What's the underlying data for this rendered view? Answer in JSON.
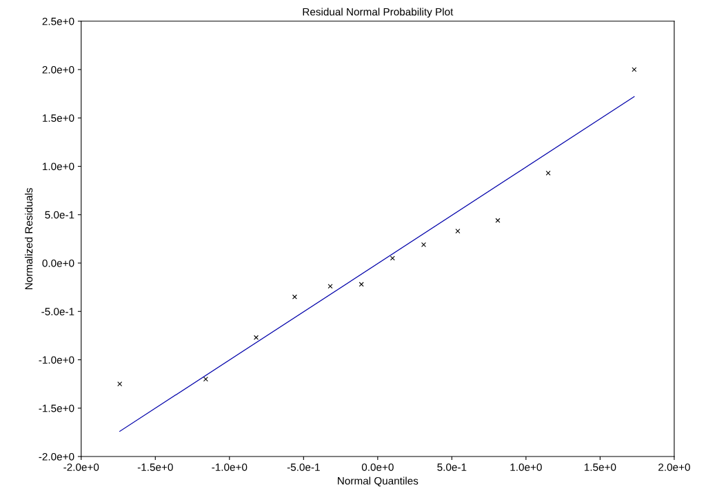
{
  "chart_data": {
    "type": "scatter",
    "title": "Residual Normal Probability Plot",
    "xlabel": "Normal Quantiles",
    "ylabel": "Normalized Residuals",
    "marker": "cross",
    "grid": false,
    "xlim": [
      -2.0,
      2.0
    ],
    "ylim": [
      -2.0,
      2.5
    ],
    "xticks": [
      {
        "value": -2.0,
        "label": "-2.0e+0"
      },
      {
        "value": -1.5,
        "label": "-1.5e+0"
      },
      {
        "value": -1.0,
        "label": "-1.0e+0"
      },
      {
        "value": -0.5,
        "label": "-5.0e-1"
      },
      {
        "value": 0.0,
        "label": "0.0e+0"
      },
      {
        "value": 0.5,
        "label": "5.0e-1"
      },
      {
        "value": 1.0,
        "label": "1.0e+0"
      },
      {
        "value": 1.5,
        "label": "1.5e+0"
      },
      {
        "value": 2.0,
        "label": "2.0e+0"
      }
    ],
    "yticks": [
      {
        "value": -2.0,
        "label": "-2.0e+0"
      },
      {
        "value": -1.5,
        "label": "-1.5e+0"
      },
      {
        "value": -1.0,
        "label": "-1.0e+0"
      },
      {
        "value": -0.5,
        "label": "-5.0e-1"
      },
      {
        "value": 0.0,
        "label": "0.0e+0"
      },
      {
        "value": 0.5,
        "label": "5.0e-1"
      },
      {
        "value": 1.0,
        "label": "1.0e+0"
      },
      {
        "value": 1.5,
        "label": "1.5e+0"
      },
      {
        "value": 2.0,
        "label": "2.0e+0"
      },
      {
        "value": 2.5,
        "label": "2.5e+0"
      }
    ],
    "series": [
      {
        "color": "#000000",
        "x": [
          -1.74,
          -1.16,
          -0.82,
          -0.56,
          -0.32,
          -0.11,
          0.1,
          0.31,
          0.54,
          0.81,
          1.15,
          1.73
        ],
        "values": [
          -1.25,
          -1.2,
          -0.77,
          -0.35,
          -0.24,
          -0.22,
          0.05,
          0.19,
          0.33,
          0.44,
          0.93,
          2.0
        ]
      },
      {
        "type": "line",
        "color": "#0000aa",
        "marker": "none",
        "x": [
          -1.74,
          1.73
        ],
        "values": [
          -1.74,
          1.72
        ]
      }
    ]
  }
}
